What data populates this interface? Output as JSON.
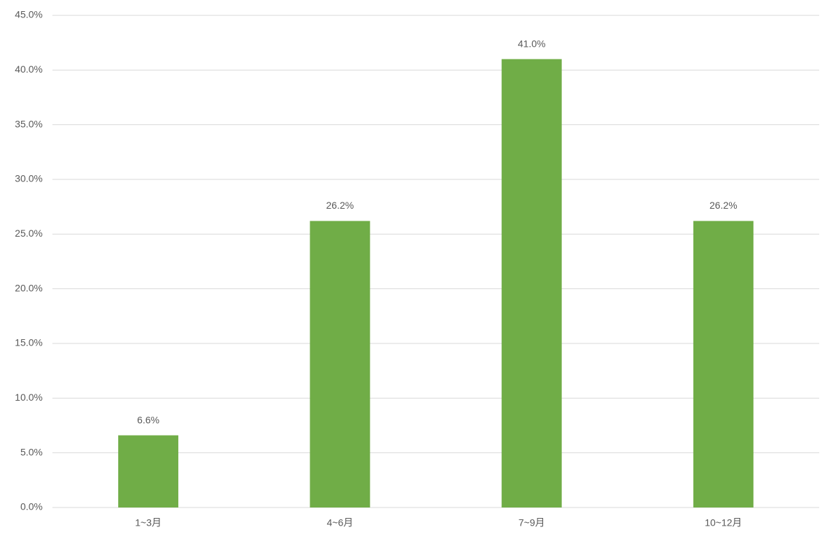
{
  "chart_data": {
    "type": "bar",
    "categories": [
      "1~3月",
      "4~6月",
      "7~9月",
      "10~12月"
    ],
    "values": [
      6.6,
      26.2,
      41.0,
      26.2
    ],
    "value_labels": [
      "6.6%",
      "26.2%",
      "41.0%",
      "26.2%"
    ],
    "color": "#70ad47",
    "ylim": [
      0,
      45
    ],
    "yticks": [
      {
        "value": 0,
        "label": "0.0%"
      },
      {
        "value": 5,
        "label": "5.0%"
      },
      {
        "value": 10,
        "label": "10.0%"
      },
      {
        "value": 15,
        "label": "15.0%"
      },
      {
        "value": 20,
        "label": "20.0%"
      },
      {
        "value": 25,
        "label": "25.0%"
      },
      {
        "value": 30,
        "label": "30.0%"
      },
      {
        "value": 35,
        "label": "35.0%"
      },
      {
        "value": 40,
        "label": "40.0%"
      },
      {
        "value": 45,
        "label": "45.0%"
      }
    ],
    "grid": true
  }
}
